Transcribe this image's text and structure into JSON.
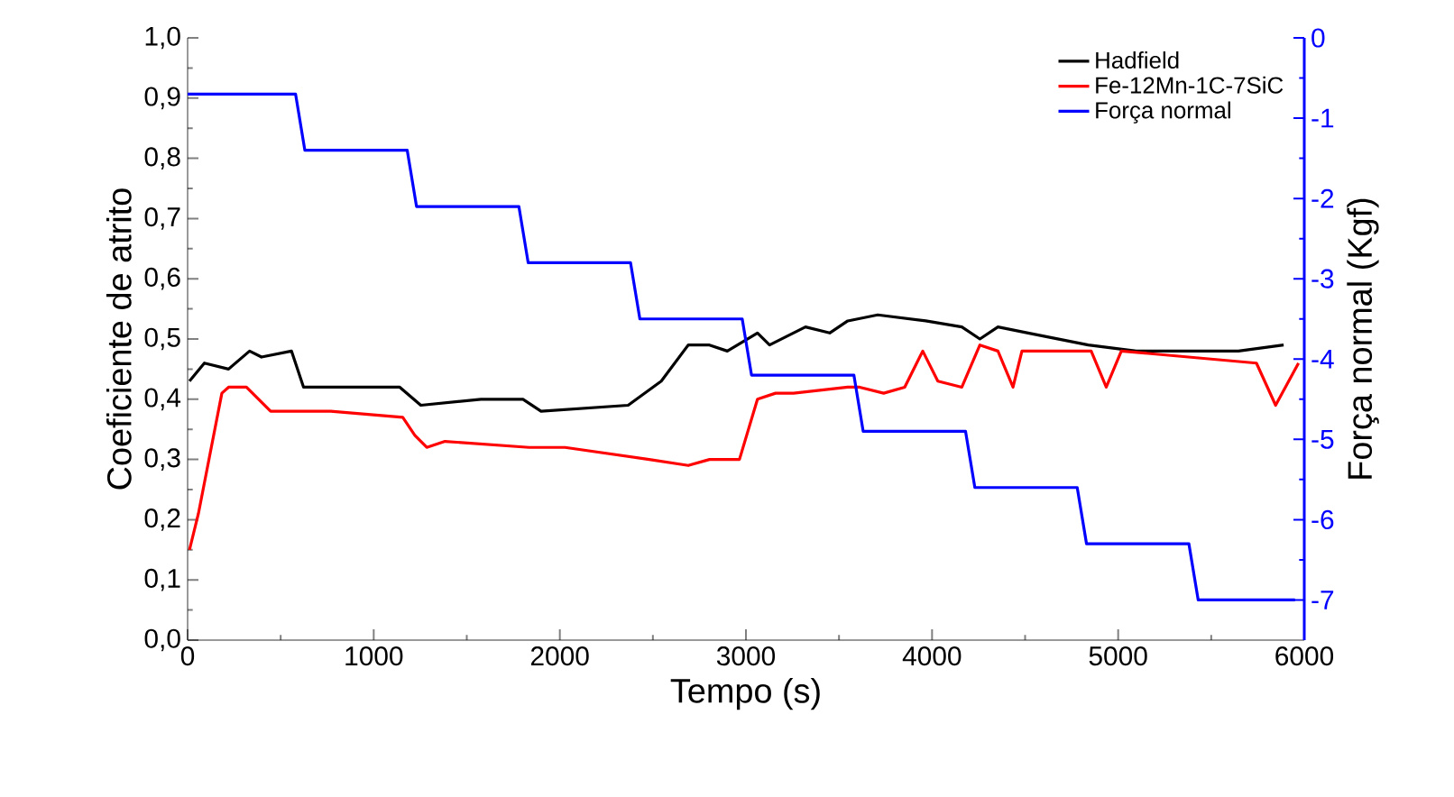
{
  "chart_data": {
    "type": "line",
    "xlabel": "Tempo (s)",
    "ylabel": "Coeficiente de atrito",
    "y2label": "Força normal (Kgf)",
    "xlim": [
      0,
      6000
    ],
    "xticks": [
      0,
      1000,
      2000,
      3000,
      4000,
      5000,
      6000
    ],
    "ylim": [
      0,
      1.0
    ],
    "yticks": [
      {
        "value": 0,
        "label": "0,0"
      },
      {
        "value": 0.1,
        "label": "0,1"
      },
      {
        "value": 0.2,
        "label": "0,2"
      },
      {
        "value": 0.3,
        "label": "0,3"
      },
      {
        "value": 0.4,
        "label": "0,4"
      },
      {
        "value": 0.5,
        "label": "0,5"
      },
      {
        "value": 0.6,
        "label": "0,6"
      },
      {
        "value": 0.7,
        "label": "0,7"
      },
      {
        "value": 0.8,
        "label": "0,8"
      },
      {
        "value": 0.9,
        "label": "0,9"
      },
      {
        "value": 1.0,
        "label": "1,0"
      }
    ],
    "y2lim": [
      -7.5,
      0
    ],
    "y2ticks": [
      0,
      -1,
      -2,
      -3,
      -4,
      -5,
      -6,
      -7
    ],
    "legend": "top right",
    "grid": false,
    "marker": "none",
    "line_style": "solid",
    "series": [
      {
        "name": "Hadfield",
        "color": "#000000",
        "x": [
          10,
          90,
          220,
          333,
          397,
          558,
          623,
          769,
          1140,
          1253,
          1576,
          1802,
          1899,
          2367,
          2545,
          2690,
          2804,
          2900,
          3062,
          3127,
          3320,
          3450,
          3547,
          3708,
          3966,
          4160,
          4257,
          4354,
          4516,
          4839,
          5097,
          5162,
          5646,
          5889
        ],
        "values": [
          0.43,
          0.46,
          0.45,
          0.48,
          0.47,
          0.48,
          0.42,
          0.42,
          0.42,
          0.39,
          0.4,
          0.4,
          0.38,
          0.39,
          0.43,
          0.49,
          0.49,
          0.48,
          0.51,
          0.49,
          0.52,
          0.51,
          0.53,
          0.54,
          0.53,
          0.52,
          0.5,
          0.52,
          0.51,
          0.49,
          0.48,
          0.48,
          0.48,
          0.49
        ]
      },
      {
        "name": "Fe-12Mn-1C-7SiC",
        "color": "#ff0000",
        "x": [
          10,
          58,
          184,
          220,
          316,
          446,
          769,
          1156,
          1221,
          1285,
          1383,
          1835,
          2028,
          2480,
          2690,
          2804,
          2965,
          3062,
          3159,
          3256,
          3547,
          3611,
          3740,
          3853,
          3950,
          4031,
          4160,
          4257,
          4354,
          4435,
          4483,
          4855,
          4936,
          5017,
          5743,
          5846,
          5969
        ],
        "values": [
          0.15,
          0.21,
          0.41,
          0.42,
          0.42,
          0.38,
          0.38,
          0.37,
          0.34,
          0.32,
          0.33,
          0.32,
          0.32,
          0.3,
          0.29,
          0.3,
          0.3,
          0.4,
          0.41,
          0.41,
          0.42,
          0.42,
          0.41,
          0.42,
          0.48,
          0.43,
          0.42,
          0.49,
          0.48,
          0.42,
          0.48,
          0.48,
          0.42,
          0.48,
          0.46,
          0.39,
          0.46
        ]
      },
      {
        "name": "Força normal",
        "color": "#0000ff",
        "axis": "y2",
        "x": [
          0,
          580,
          630,
          1180,
          1230,
          1780,
          1830,
          2380,
          2430,
          2980,
          3030,
          3580,
          3630,
          4180,
          4230,
          4780,
          4830,
          5380,
          5430,
          5950
        ],
        "values": [
          -0.7,
          -0.7,
          -1.4,
          -1.4,
          -2.1,
          -2.1,
          -2.8,
          -2.8,
          -3.5,
          -3.5,
          -4.2,
          -4.2,
          -4.9,
          -4.9,
          -5.6,
          -5.6,
          -6.3,
          -6.3,
          -7.0,
          -7.0
        ]
      }
    ]
  }
}
